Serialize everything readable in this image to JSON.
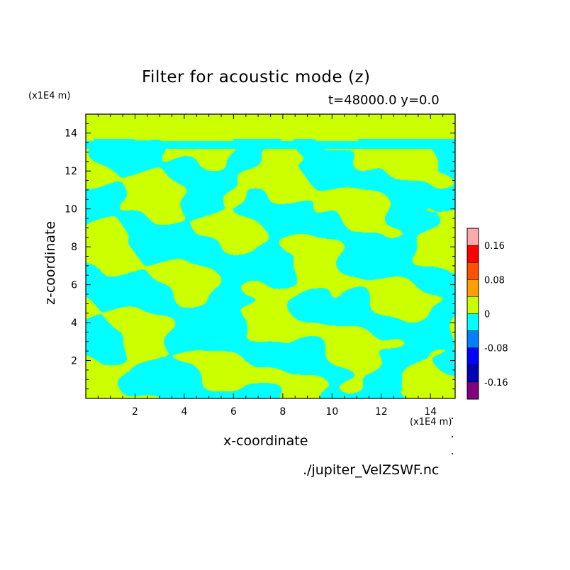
{
  "chart_data": {
    "type": "heatmap",
    "title": "Filter for acoustic mode (z)",
    "subtitle": "t=48000.0 y=0.0",
    "xlabel": "x-coordinate",
    "ylabel": "z-coordinate",
    "x_unit": "(x1E4 m)",
    "y_unit": "(x1E4 m)",
    "xlim": [
      0,
      15
    ],
    "ylim": [
      0,
      15
    ],
    "x_ticks": [
      2,
      4,
      6,
      8,
      10,
      12,
      14
    ],
    "y_ticks": [
      2,
      4,
      6,
      8,
      10,
      12,
      14
    ],
    "source": "./jupiter_VelZSWF.nc",
    "dominant_levels": [
      "0 to 0.04",
      "-0.04 to 0"
    ],
    "colorbar": {
      "levels": [
        -0.2,
        -0.16,
        -0.12,
        -0.08,
        -0.04,
        0,
        0.04,
        0.08,
        0.12,
        0.16,
        0.2
      ],
      "colors": [
        "#7f007f",
        "#0000b4",
        "#0000ff",
        "#0080ff",
        "#00ffff",
        "#c8ff00",
        "#ffa000",
        "#ff5000",
        "#ff0000",
        "#ffaaaa"
      ],
      "tick_labels": [
        "-0.16",
        "-0.08",
        "0",
        "0.08",
        "0.16"
      ]
    },
    "colors": {
      "positive_fill": "#ccff00",
      "negative_fill": "#00ffff"
    }
  }
}
